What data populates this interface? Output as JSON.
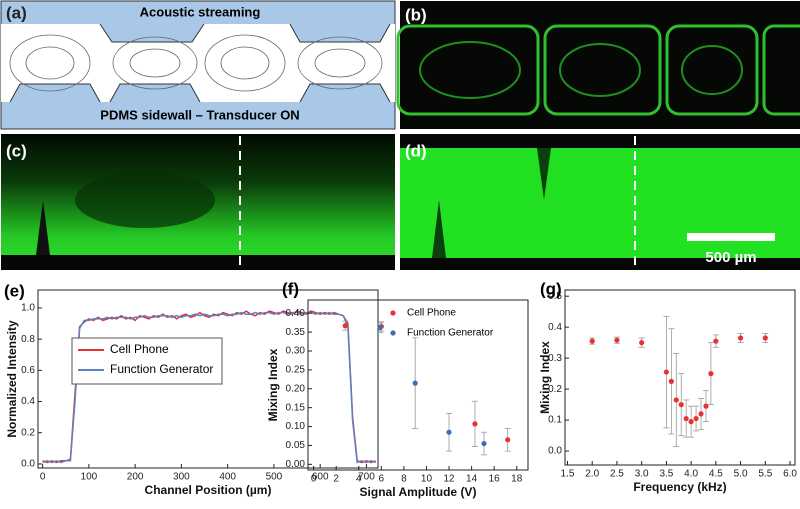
{
  "images": {
    "a": {
      "label": "(a)",
      "title": "Acoustic streaming",
      "caption": "PDMS sidewall – Transducer ON"
    },
    "b": {
      "label": "(b)"
    },
    "c": {
      "label": "(c)"
    },
    "d": {
      "label": "(d)",
      "scale_bar": "500 µm"
    }
  },
  "chart_data": [
    {
      "type": "line",
      "panel_label": "(e)",
      "xlabel": "Channel Position (µm)",
      "ylabel": "Normalized Intensity",
      "xlim": [
        -10,
        725
      ],
      "xticks": [
        0,
        100,
        200,
        300,
        400,
        500,
        600,
        700
      ],
      "ylim": [
        -0.026,
        1.115
      ],
      "yticks": [
        {
          "value": 0,
          "label": "0.0"
        },
        0.2,
        0.4,
        0.6,
        0.8,
        {
          "value": 1,
          "label": "1.0"
        }
      ],
      "legend": "center-left",
      "x": [
        0,
        10,
        20,
        30,
        40,
        50,
        60,
        70,
        80,
        90,
        100,
        110,
        120,
        130,
        140,
        150,
        160,
        170,
        180,
        190,
        200,
        210,
        220,
        230,
        240,
        250,
        260,
        270,
        280,
        290,
        300,
        310,
        320,
        330,
        340,
        350,
        360,
        370,
        380,
        390,
        400,
        410,
        420,
        430,
        440,
        450,
        460,
        470,
        480,
        490,
        500,
        510,
        520,
        530,
        540,
        550,
        560,
        570,
        580,
        590,
        600,
        610,
        620,
        630,
        640,
        650,
        660,
        670,
        680,
        690,
        700,
        710,
        720
      ],
      "series": [
        {
          "name": "Cell Phone",
          "color": "#e8322e",
          "values": [
            0.02,
            0.01,
            0.02,
            0.01,
            0.02,
            0.02,
            0.03,
            0.45,
            0.88,
            0.91,
            0.93,
            0.92,
            0.94,
            0.92,
            0.93,
            0.94,
            0.93,
            0.95,
            0.93,
            0.94,
            0.92,
            0.95,
            0.94,
            0.93,
            0.95,
            0.94,
            0.96,
            0.94,
            0.95,
            0.93,
            0.95,
            0.96,
            0.94,
            0.95,
            0.97,
            0.95,
            0.94,
            0.96,
            0.95,
            0.97,
            0.96,
            0.95,
            0.97,
            0.96,
            0.98,
            0.96,
            0.95,
            0.97,
            0.96,
            0.98,
            0.97,
            0.96,
            0.98,
            0.97,
            0.96,
            0.98,
            0.97,
            0.96,
            0.98,
            0.97,
            0.96,
            0.97,
            0.96,
            0.97,
            0.96,
            0.95,
            0.9,
            0.3,
            0.02,
            0.01,
            0.02,
            0.01,
            0.02
          ]
        },
        {
          "name": "Function Generator",
          "color": "#5b82c4",
          "values": [
            0.01,
            0.02,
            0.01,
            0.02,
            0.01,
            0.02,
            0.02,
            0.4,
            0.87,
            0.92,
            0.92,
            0.93,
            0.93,
            0.93,
            0.94,
            0.93,
            0.94,
            0.94,
            0.94,
            0.93,
            0.94,
            0.94,
            0.95,
            0.94,
            0.94,
            0.95,
            0.95,
            0.95,
            0.94,
            0.95,
            0.94,
            0.95,
            0.95,
            0.96,
            0.95,
            0.96,
            0.95,
            0.95,
            0.96,
            0.96,
            0.95,
            0.96,
            0.96,
            0.97,
            0.96,
            0.96,
            0.97,
            0.96,
            0.97,
            0.97,
            0.96,
            0.97,
            0.97,
            0.96,
            0.97,
            0.97,
            0.96,
            0.97,
            0.97,
            0.96,
            0.97,
            0.96,
            0.97,
            0.96,
            0.96,
            0.95,
            0.88,
            0.28,
            0.01,
            0.02,
            0.01,
            0.02,
            0.01
          ]
        }
      ]
    },
    {
      "type": "scatter",
      "panel_label": "(f)",
      "xlabel": "Signal Amplitude (V)",
      "ylabel": "Mixing Index",
      "xlim": [
        -0.5,
        19
      ],
      "xticks": [
        0,
        2,
        4,
        6,
        8,
        10,
        12,
        14,
        16,
        18
      ],
      "ylim": [
        -0.015,
        0.435
      ],
      "yticks": [
        {
          "value": 0,
          "label": "0.00"
        },
        0.05,
        {
          "value": 0.1,
          "label": "0.10"
        },
        0.15,
        {
          "value": 0.2,
          "label": "0.20"
        },
        0.25,
        {
          "value": 0.3,
          "label": "0.30"
        },
        0.35,
        {
          "value": 0.4,
          "label": "0.40"
        }
      ],
      "legend": "upper-right",
      "series": [
        {
          "name": "Cell Phone",
          "color": "#e8322e",
          "x": [
            2.8,
            6,
            14.3,
            17.2
          ],
          "values": [
            0.367,
            0.365,
            0.107,
            0.065
          ],
          "errors": [
            0.012,
            0.012,
            0.06,
            0.03
          ]
        },
        {
          "name": "Function Generator",
          "color": "#3a6fb8",
          "x": [
            5.9,
            9,
            12,
            15.1
          ],
          "values": [
            0.362,
            0.215,
            0.085,
            0.055
          ],
          "errors": [
            0.013,
            0.12,
            0.05,
            0.03
          ]
        }
      ]
    },
    {
      "type": "scatter",
      "panel_label": "(g)",
      "xlabel": "Frequency (kHz)",
      "ylabel": "Mixing Index",
      "xlim": [
        1.45,
        6.1
      ],
      "xticks": [
        1.5,
        {
          "value": 2,
          "label": "2.0"
        },
        2.5,
        {
          "value": 3,
          "label": "3.0"
        },
        3.5,
        {
          "value": 4,
          "label": "4.0"
        },
        4.5,
        {
          "value": 5,
          "label": "5.0"
        },
        5.5,
        {
          "value": 6,
          "label": "6.0"
        }
      ],
      "ylim": [
        -0.045,
        0.52
      ],
      "yticks": [
        {
          "value": 0,
          "label": "0.0"
        },
        0.1,
        0.2,
        0.3,
        0.4,
        0.5
      ],
      "series": [
        {
          "color": "#e8322e",
          "x": [
            2,
            2.5,
            3,
            3.5,
            3.6,
            3.7,
            3.8,
            3.9,
            4.0,
            4.1,
            4.2,
            4.3,
            4.4,
            4.5,
            5,
            5.5
          ],
          "values": [
            0.355,
            0.358,
            0.35,
            0.255,
            0.225,
            0.165,
            0.15,
            0.105,
            0.095,
            0.105,
            0.12,
            0.145,
            0.25,
            0.355,
            0.365,
            0.365
          ],
          "errors": [
            0.01,
            0.01,
            0.015,
            0.18,
            0.17,
            0.15,
            0.1,
            0.06,
            0.05,
            0.04,
            0.05,
            0.05,
            0.1,
            0.02,
            0.015,
            0.015
          ]
        }
      ]
    }
  ]
}
